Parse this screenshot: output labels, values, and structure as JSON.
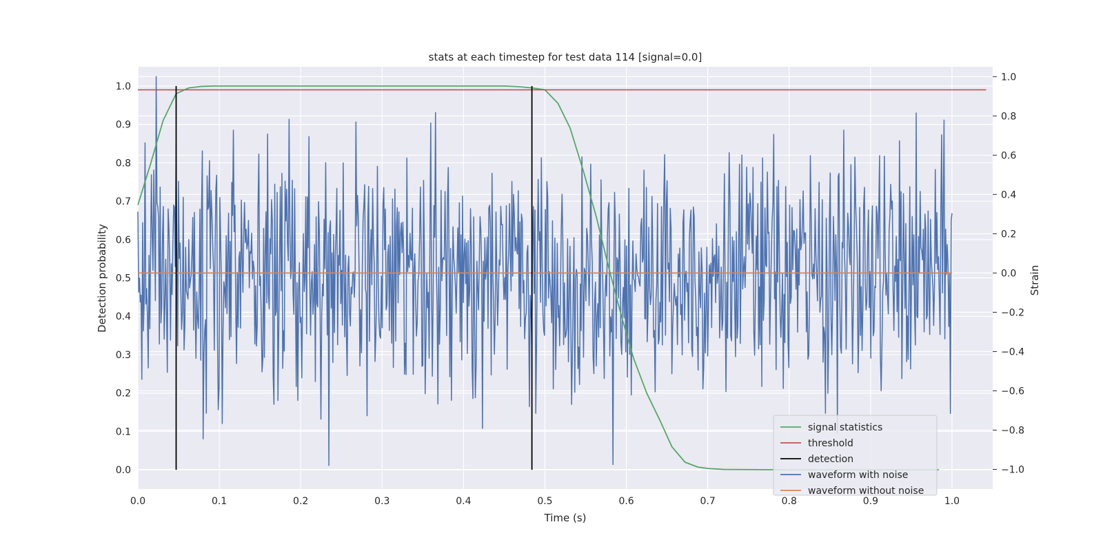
{
  "chart_data": {
    "type": "line",
    "title": "stats at each timestep for test data 114 [signal=0.0]",
    "xlabel": "Time (s)",
    "ylabel": "Detection probability",
    "ylabel_right": "Strain",
    "xlim": [
      0.0,
      1.05
    ],
    "ylim": [
      -0.05,
      1.05
    ],
    "ylim_right": [
      -1.1,
      1.05
    ],
    "x_ticks": [
      "0.0",
      "0.1",
      "0.2",
      "0.3",
      "0.4",
      "0.5",
      "0.6",
      "0.7",
      "0.8",
      "0.9",
      "1.0"
    ],
    "y_ticks": [
      "0.0",
      "0.1",
      "0.2",
      "0.3",
      "0.4",
      "0.5",
      "0.6",
      "0.7",
      "0.8",
      "0.9",
      "1.0"
    ],
    "y_ticks_right": [
      "−1.0",
      "−0.8",
      "−0.6",
      "−0.4",
      "−0.2",
      "0.0",
      "0.2",
      "0.4",
      "0.6",
      "0.8",
      "1.0"
    ],
    "grid": true,
    "legend_placement": "lower-right",
    "series": [
      {
        "name": "signal statistics",
        "color": "#55a868",
        "axis": "left",
        "x": [
          0.0,
          0.016,
          0.031,
          0.047,
          0.0625,
          0.078,
          0.094,
          0.25,
          0.4,
          0.45,
          0.47,
          0.484,
          0.5,
          0.516,
          0.531,
          0.547,
          0.563,
          0.578,
          0.594,
          0.609,
          0.625,
          0.641,
          0.656,
          0.672,
          0.688,
          0.703,
          0.72,
          0.8,
          0.9,
          0.984
        ],
        "y": [
          0.69,
          0.8,
          0.91,
          0.98,
          0.995,
          0.999,
          1.0,
          1.0,
          1.0,
          1.0,
          0.998,
          0.995,
          0.99,
          0.955,
          0.89,
          0.78,
          0.66,
          0.53,
          0.4,
          0.29,
          0.2,
          0.13,
          0.06,
          0.02,
          0.007,
          0.003,
          0.001,
          0.0,
          0.0,
          0.0
        ]
      },
      {
        "name": "threshold",
        "color": "#c44e52",
        "axis": "left",
        "x": [
          0.0,
          1.042
        ],
        "y": [
          0.99,
          0.99
        ]
      },
      {
        "name": "detection",
        "color": "#000000",
        "axis": "left",
        "segments": [
          {
            "x": 0.047,
            "y0": 0.0,
            "y1": 1.0
          },
          {
            "x": 0.484,
            "y0": 0.0,
            "y1": 1.0
          }
        ]
      },
      {
        "name": "waveform with noise",
        "color": "#4c72b0",
        "axis": "right",
        "x_start": 0.0,
        "x_end": 1.0,
        "count": 1024,
        "y_std": 0.3,
        "y_range": [
          -0.98,
          1.0
        ]
      },
      {
        "name": "waveform without noise",
        "color": "#dd8452",
        "axis": "right",
        "x": [
          0.0,
          1.0
        ],
        "y": [
          0.0,
          0.0
        ]
      }
    ]
  }
}
